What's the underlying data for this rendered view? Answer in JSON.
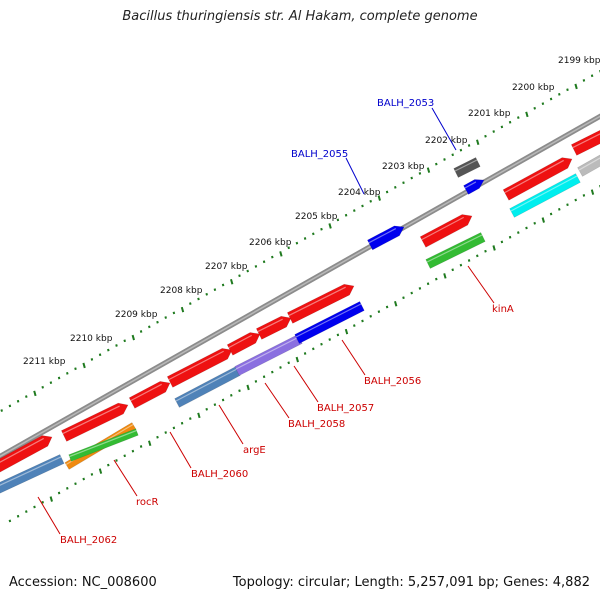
{
  "title": "Bacillus thuringiensis str. Al Hakam, complete genome",
  "footer": {
    "accession": "Accession: NC_008600",
    "summary": "Topology: circular; Length: 5,257,091 bp; Genes: 4,882"
  },
  "colors": {
    "backbone": "#8c8c8c",
    "tick": "#1f7a1f",
    "forward_gene": "#ee1111",
    "label_red": "#cc0000",
    "label_blue": "#0000cc"
  },
  "scale": {
    "unit": "kbp",
    "labels": [
      "2199 kbp",
      "2200 kbp",
      "2201 kbp",
      "2202 kbp",
      "2203 kbp",
      "2204 kbp",
      "2205 kbp",
      "2206 kbp",
      "2207 kbp",
      "2208 kbp",
      "2209 kbp",
      "2210 kbp",
      "2211 kbp"
    ]
  },
  "gene_labels": [
    {
      "text": "BALH_2053",
      "color": "blue"
    },
    {
      "text": "BALH_2055",
      "color": "blue"
    },
    {
      "text": "kinA",
      "color": "red"
    },
    {
      "text": "BALH_2056",
      "color": "red"
    },
    {
      "text": "BALH_2057",
      "color": "red"
    },
    {
      "text": "BALH_2058",
      "color": "red"
    },
    {
      "text": "argE",
      "color": "red"
    },
    {
      "text": "BALH_2060",
      "color": "red"
    },
    {
      "text": "rocR",
      "color": "red"
    },
    {
      "text": "BALH_2062",
      "color": "red"
    }
  ]
}
